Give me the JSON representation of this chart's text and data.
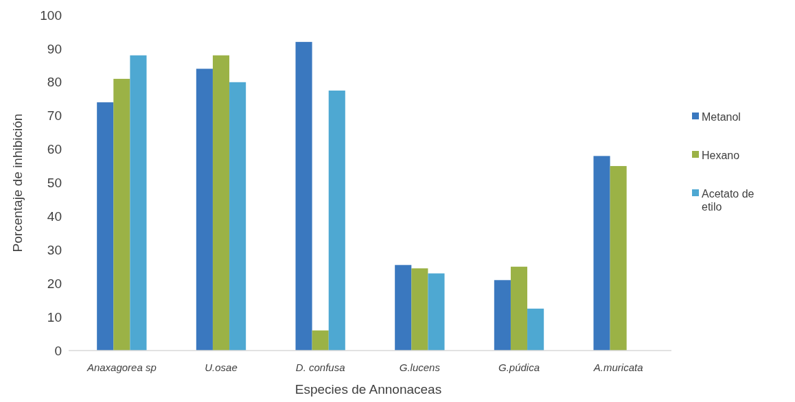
{
  "chart_data": {
    "type": "bar",
    "xlabel": "Especies de Annonaceas",
    "ylabel": "Porcentaje de inhibición",
    "categories": [
      "Anaxagorea sp",
      "U.osae",
      "D. confusa",
      "G.lucens",
      "G.púdica",
      "A.muricata"
    ],
    "series": [
      {
        "name": "Metanol",
        "color": "#3a78bf",
        "values": [
          74,
          84,
          92,
          25.5,
          21,
          58
        ]
      },
      {
        "name": "Hexano",
        "color": "#9bb246",
        "values": [
          81,
          88,
          6,
          24.5,
          25,
          55
        ]
      },
      {
        "name": "Acetato de etilo",
        "color": "#4ea8d2",
        "values": [
          88,
          80,
          77.5,
          23,
          12.5,
          null
        ]
      }
    ],
    "ylim": [
      0,
      100
    ],
    "yticks": [
      0,
      10,
      20,
      30,
      40,
      50,
      60,
      70,
      80,
      90,
      100
    ],
    "grid": false,
    "legend": "right"
  }
}
